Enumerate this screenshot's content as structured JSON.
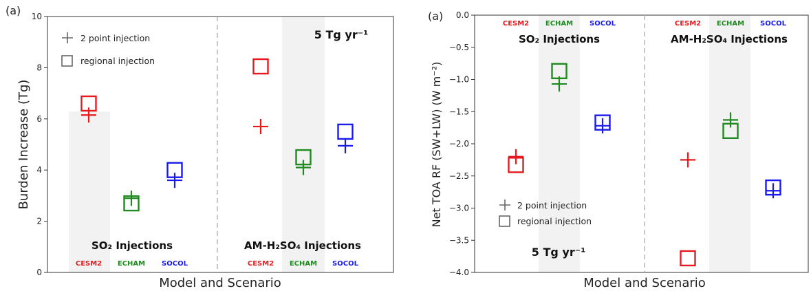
{
  "colors": {
    "CESM2": "#e8191e",
    "ECHAM": "#1f8a1f",
    "SOCOL": "#1a1aee"
  },
  "chart_data": [
    {
      "type": "scatter",
      "panel_label": "(a)",
      "xlabel": "Model and Scenario",
      "ylabel": "Burden Increase (Tg)",
      "ylim": [
        0,
        10
      ],
      "yticks": [
        "0",
        "2",
        "4",
        "6",
        "8",
        "10"
      ],
      "annotation": "5 Tg yr⁻¹",
      "legend": {
        "position": "top-left",
        "entries": [
          "2 point injection",
          "regional injection"
        ]
      },
      "groups": [
        "SO₂ Injections",
        "AM-H₂SO₄ Injections"
      ],
      "models": [
        "CESM2",
        "ECHAM",
        "SOCOL"
      ],
      "series": [
        {
          "name": "2 point injection",
          "marker": "plus",
          "values": [
            [
              6.15,
              2.9,
              3.6
            ],
            [
              5.7,
              4.1,
              4.95
            ]
          ]
        },
        {
          "name": "regional injection",
          "marker": "square",
          "values": [
            [
              6.6,
              2.7,
              4.0
            ],
            [
              8.05,
              4.5,
              5.5
            ]
          ]
        }
      ]
    },
    {
      "type": "scatter",
      "panel_label": "(a)",
      "xlabel": "Model and Scenario",
      "ylabel": "Net TOA RF (SW+LW) (W m⁻²)",
      "ylim": [
        -4.0,
        0.0
      ],
      "yticks": [
        "0.0",
        "−0.5",
        "−1.0",
        "−1.5",
        "−2.0",
        "−2.5",
        "−3.0",
        "−3.5",
        "−4.0"
      ],
      "annotation": "5 Tg yr⁻¹",
      "legend": {
        "position": "bottom-left",
        "entries": [
          "2 point injection",
          "regional injection"
        ]
      },
      "groups": [
        "SO₂ Injections",
        "AM-H₂SO₄ Injections"
      ],
      "models": [
        "CESM2",
        "ECHAM",
        "SOCOL"
      ],
      "series": [
        {
          "name": "2 point injection",
          "marker": "plus",
          "values": [
            [
              -2.2,
              -1.07,
              -1.72
            ],
            [
              -2.25,
              -1.63,
              -2.73
            ]
          ]
        },
        {
          "name": "regional injection",
          "marker": "square",
          "values": [
            [
              -2.33,
              -0.87,
              -1.67
            ],
            [
              -3.78,
              -1.8,
              -2.68
            ]
          ]
        }
      ]
    }
  ]
}
